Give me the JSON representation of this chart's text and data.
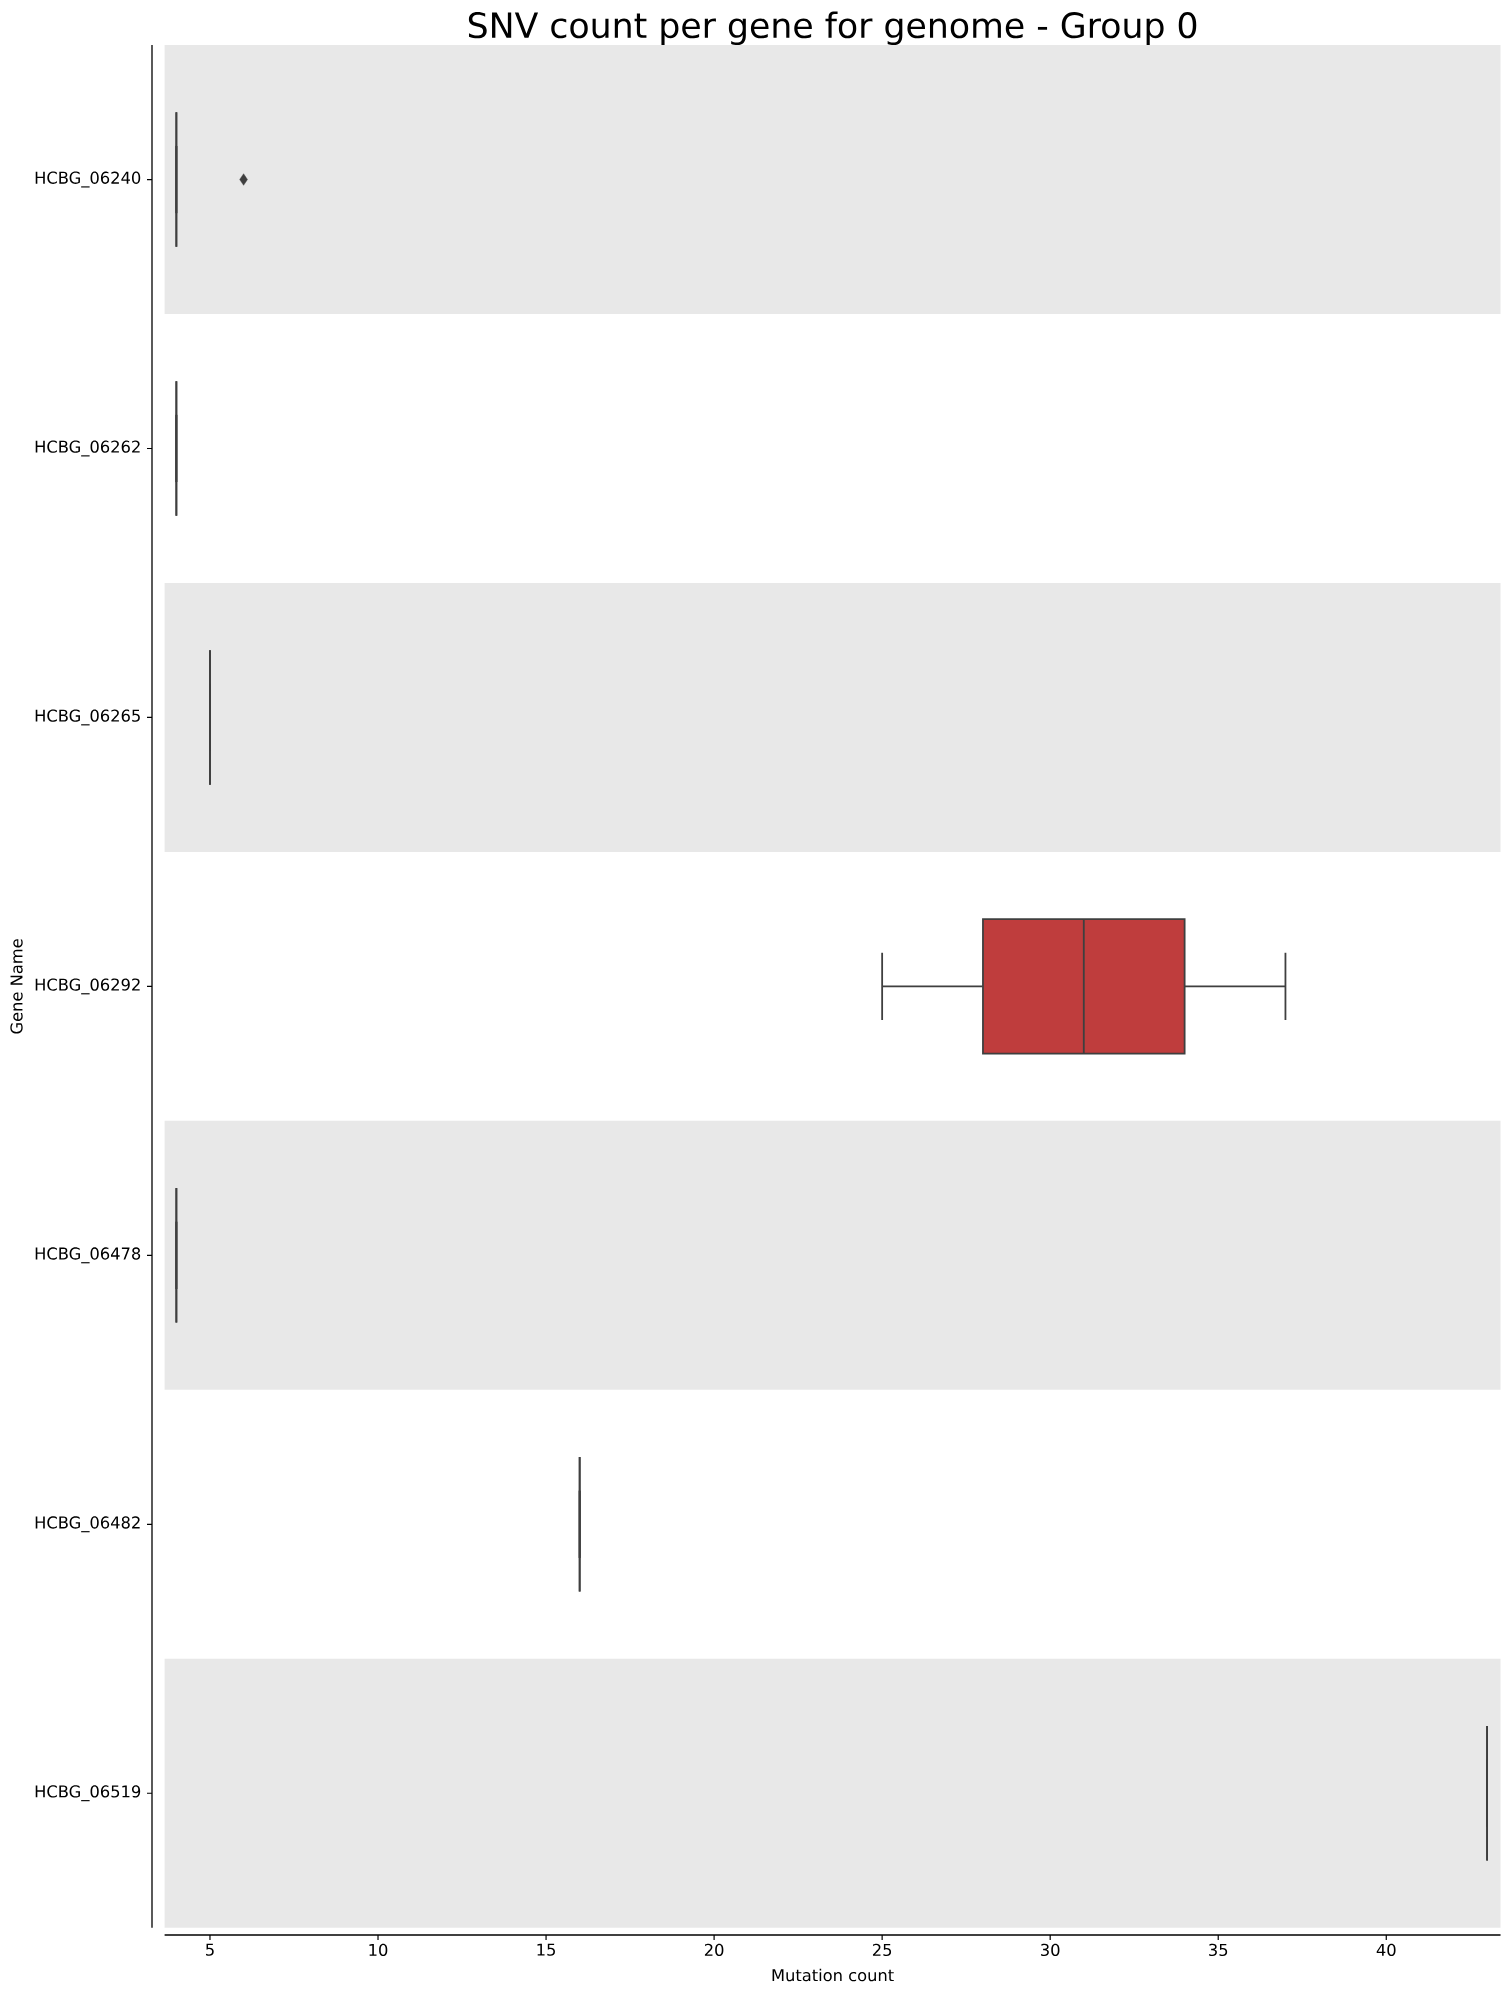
{
  "chart_data": {
    "type": "box",
    "title": "SNV count per gene for genome - Group 0",
    "xlabel": "Mutation count",
    "ylabel": "Gene Name",
    "orientation": "horizontal",
    "categories": [
      "HCBG_06240",
      "HCBG_06262",
      "HCBG_06265",
      "HCBG_06292",
      "HCBG_06478",
      "HCBG_06482",
      "HCBG_06519"
    ],
    "colors": [
      "#3f3f3f",
      "#3f3f3f",
      "#3f3f3f",
      "#bf3d3d",
      "#3f3f3f",
      "#3f3f3f",
      "#3f3f3f"
    ],
    "boxes": [
      {
        "low": 4,
        "q1": 4,
        "median": 4,
        "q3": 4,
        "high": 4,
        "outliers": [
          6
        ]
      },
      {
        "low": 4,
        "q1": 4,
        "median": 4,
        "q3": 4,
        "high": 4
      },
      {
        "low": 5,
        "q1": 5,
        "median": 5,
        "q3": 5,
        "high": 5
      },
      {
        "low": 25,
        "q1": 28,
        "median": 31,
        "q3": 34,
        "high": 37
      },
      {
        "low": 4,
        "q1": 4,
        "median": 4,
        "q3": 4,
        "high": 4
      },
      {
        "low": 16,
        "q1": 16,
        "median": 16,
        "q3": 16,
        "high": 16
      },
      {
        "low": 43,
        "q1": 43,
        "median": 43,
        "q3": 43,
        "high": 43
      }
    ],
    "xlim": [
      3.65,
      43.4
    ],
    "xticks": [
      5,
      10,
      15,
      20,
      25,
      30,
      35,
      40
    ]
  }
}
